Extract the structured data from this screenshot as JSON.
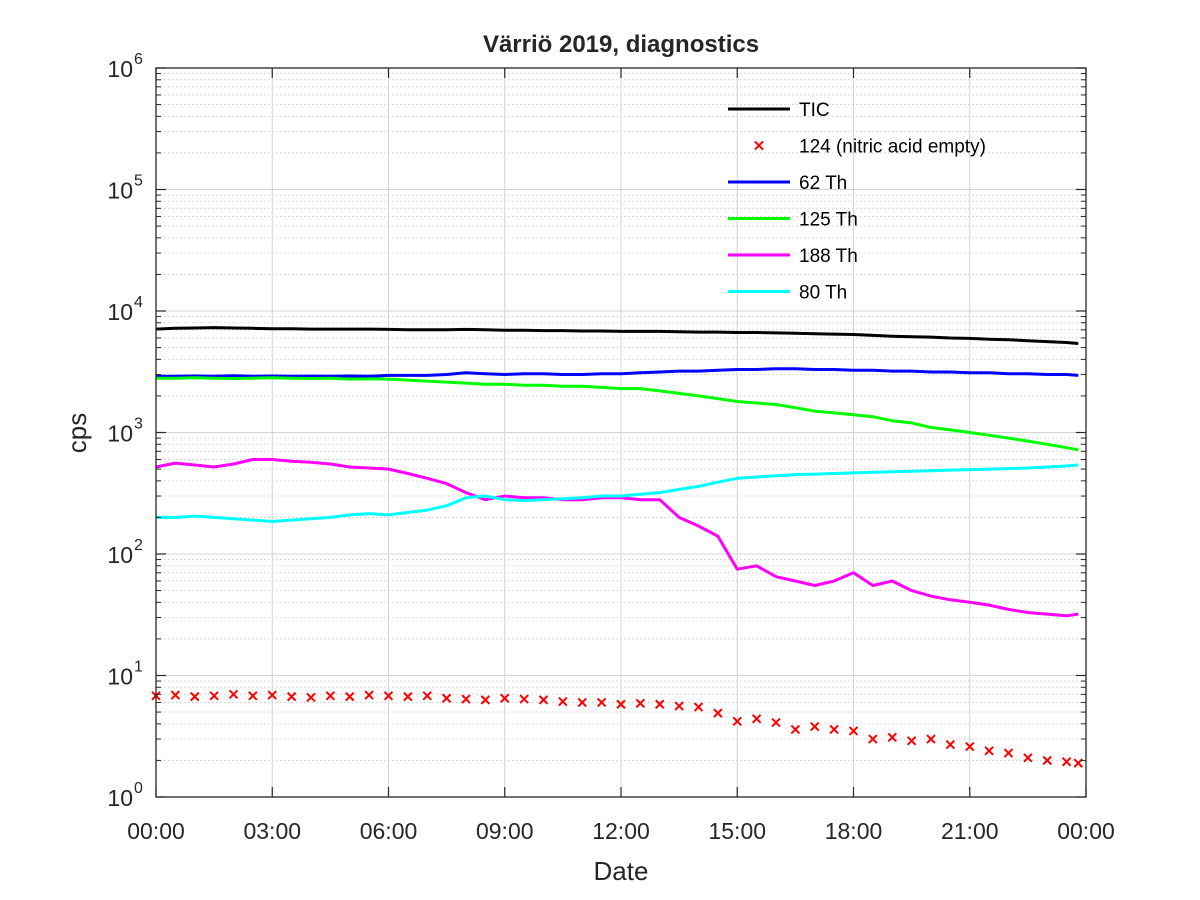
{
  "chart_data": {
    "type": "line",
    "title": "Värriö 2019, diagnostics",
    "xlabel": "Date",
    "ylabel": "cps",
    "yscale": "log",
    "ylim": [
      1,
      1000000
    ],
    "xlim": [
      "00:00",
      "24:00"
    ],
    "x_ticks": [
      "00:00",
      "03:00",
      "06:00",
      "09:00",
      "12:00",
      "15:00",
      "18:00",
      "21:00",
      "00:00"
    ],
    "y_ticks": [
      {
        "base": "10",
        "exp": "0"
      },
      {
        "base": "10",
        "exp": "1"
      },
      {
        "base": "10",
        "exp": "2"
      },
      {
        "base": "10",
        "exp": "3"
      },
      {
        "base": "10",
        "exp": "4"
      },
      {
        "base": "10",
        "exp": "5"
      },
      {
        "base": "10",
        "exp": "6"
      }
    ],
    "grid": true,
    "minor_grid": true,
    "legend_position": "top-right",
    "x_hours": [
      0,
      0.5,
      1,
      1.5,
      2,
      2.5,
      3,
      3.5,
      4,
      4.5,
      5,
      5.5,
      6,
      6.5,
      7,
      7.5,
      8,
      8.5,
      9,
      9.5,
      10,
      10.5,
      11,
      11.5,
      12,
      12.5,
      13,
      13.5,
      14,
      14.5,
      15,
      15.5,
      16,
      16.5,
      17,
      17.5,
      18,
      18.5,
      19,
      19.5,
      20,
      20.5,
      21,
      21.5,
      22,
      22.5,
      23,
      23.5,
      23.8
    ],
    "series": [
      {
        "name": "TIC",
        "color": "#000000",
        "style": "line",
        "values": [
          7100,
          7200,
          7250,
          7300,
          7250,
          7200,
          7150,
          7150,
          7100,
          7100,
          7100,
          7100,
          7050,
          7000,
          7000,
          7000,
          7050,
          7000,
          6950,
          6950,
          6900,
          6900,
          6850,
          6850,
          6800,
          6800,
          6800,
          6750,
          6700,
          6700,
          6650,
          6650,
          6600,
          6550,
          6500,
          6450,
          6400,
          6300,
          6200,
          6150,
          6100,
          6000,
          5950,
          5850,
          5800,
          5700,
          5600,
          5500,
          5400
        ]
      },
      {
        "name": "124 (nitric acid empty)",
        "color": "#ff0000",
        "style": "marker",
        "marker": "x",
        "values": [
          6.8,
          6.9,
          6.7,
          6.8,
          7.0,
          6.8,
          6.9,
          6.7,
          6.6,
          6.8,
          6.7,
          6.9,
          6.8,
          6.7,
          6.8,
          6.5,
          6.4,
          6.3,
          6.5,
          6.4,
          6.3,
          6.1,
          6.0,
          6.0,
          5.8,
          5.9,
          5.8,
          5.6,
          5.5,
          4.9,
          4.2,
          4.4,
          4.1,
          3.6,
          3.8,
          3.6,
          3.5,
          3.0,
          3.1,
          2.9,
          3.0,
          2.7,
          2.6,
          2.4,
          2.3,
          2.1,
          2.0,
          1.95,
          1.9
        ]
      },
      {
        "name": "62 Th",
        "color": "#0000ff",
        "style": "line",
        "values": [
          2900,
          2900,
          2920,
          2900,
          2930,
          2900,
          2920,
          2900,
          2910,
          2900,
          2920,
          2900,
          2950,
          2950,
          2950,
          3000,
          3100,
          3050,
          3000,
          3050,
          3050,
          3000,
          3000,
          3050,
          3050,
          3100,
          3150,
          3200,
          3200,
          3250,
          3300,
          3300,
          3350,
          3350,
          3300,
          3300,
          3250,
          3250,
          3200,
          3200,
          3150,
          3150,
          3100,
          3100,
          3050,
          3050,
          3000,
          3000,
          2950
        ]
      },
      {
        "name": "125 Th",
        "color": "#00ff00",
        "style": "line",
        "values": [
          2800,
          2800,
          2820,
          2800,
          2780,
          2800,
          2820,
          2800,
          2780,
          2800,
          2750,
          2760,
          2750,
          2700,
          2650,
          2600,
          2550,
          2500,
          2500,
          2450,
          2450,
          2400,
          2400,
          2350,
          2300,
          2300,
          2200,
          2100,
          2000,
          1900,
          1800,
          1750,
          1700,
          1600,
          1500,
          1450,
          1400,
          1350,
          1250,
          1200,
          1100,
          1050,
          1000,
          950,
          900,
          850,
          800,
          750,
          720
        ]
      },
      {
        "name": "188 Th",
        "color": "#ff00ff",
        "style": "line",
        "values": [
          520,
          560,
          540,
          520,
          550,
          600,
          600,
          580,
          570,
          550,
          520,
          510,
          500,
          460,
          420,
          380,
          320,
          280,
          300,
          290,
          290,
          280,
          280,
          290,
          290,
          280,
          280,
          200,
          170,
          140,
          75,
          80,
          65,
          60,
          55,
          60,
          70,
          55,
          60,
          50,
          45,
          42,
          40,
          38,
          35,
          33,
          32,
          31,
          32
        ]
      },
      {
        "name": "80 Th",
        "color": "#00ffff",
        "style": "line",
        "values": [
          200,
          200,
          205,
          200,
          195,
          190,
          185,
          190,
          195,
          200,
          210,
          215,
          210,
          220,
          230,
          250,
          290,
          300,
          280,
          275,
          280,
          285,
          290,
          300,
          300,
          310,
          320,
          340,
          360,
          390,
          420,
          430,
          440,
          450,
          455,
          460,
          465,
          470,
          475,
          480,
          485,
          490,
          495,
          500,
          505,
          510,
          520,
          530,
          540
        ]
      }
    ]
  }
}
